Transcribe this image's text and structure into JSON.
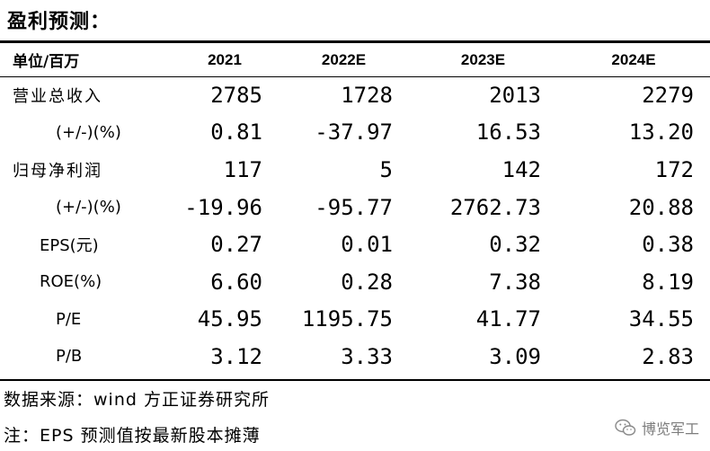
{
  "title": "盈利预测：",
  "table": {
    "header": [
      "单位/百万",
      "2021",
      "2022E",
      "2023E",
      "2024E"
    ],
    "rows": [
      {
        "label": "营业总收入",
        "values": [
          "2785",
          "1728",
          "2013",
          "2279"
        ]
      },
      {
        "label": "(+/-)(%)",
        "values": [
          "0.81",
          "-37.97",
          "16.53",
          "13.20"
        ]
      },
      {
        "label": "归母净利润",
        "values": [
          "117",
          "5",
          "142",
          "172"
        ]
      },
      {
        "label": "(+/-)(%)",
        "values": [
          "-19.96",
          "-95.77",
          "2762.73",
          "20.88"
        ]
      },
      {
        "label": "EPS(元)",
        "values": [
          "0.27",
          "0.01",
          "0.32",
          "0.38"
        ]
      },
      {
        "label": "ROE(%)",
        "values": [
          "6.60",
          "0.28",
          "7.38",
          "8.19"
        ]
      },
      {
        "label": "P/E",
        "values": [
          "45.95",
          "1195.75",
          "41.77",
          "34.55"
        ]
      },
      {
        "label": "P/B",
        "values": [
          "3.12",
          "3.33",
          "3.09",
          "2.83"
        ]
      }
    ]
  },
  "source": "数据来源：wind 方正证券研究所",
  "note": "注：EPS 预测值按最新股本摊薄",
  "watermark": {
    "text": "博览军工",
    "icon": "wechat-icon",
    "color": "#7d7d7d"
  }
}
